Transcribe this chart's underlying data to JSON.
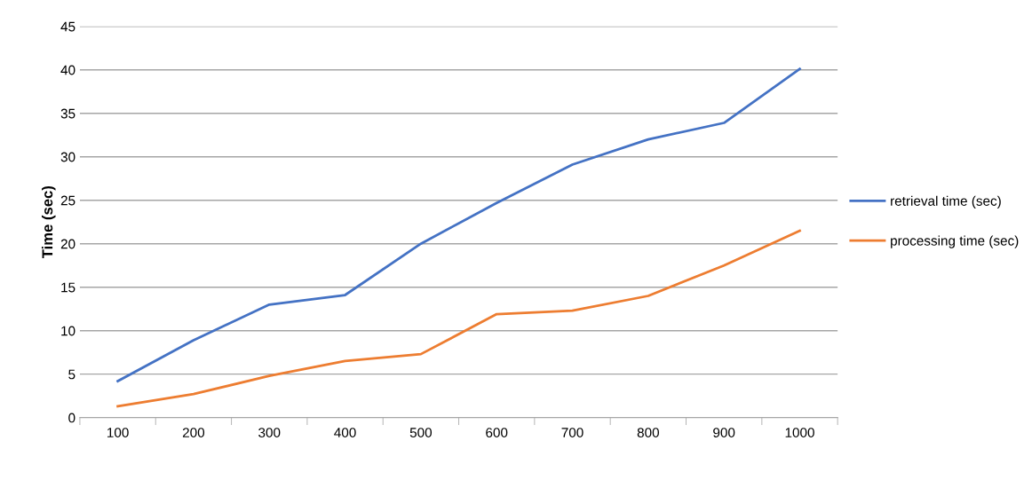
{
  "chart_data": {
    "type": "line",
    "ylabel": "Time (sec)",
    "categories": [
      "100",
      "200",
      "300",
      "400",
      "500",
      "600",
      "700",
      "800",
      "900",
      "1000"
    ],
    "series": [
      {
        "name": "retrieval time (sec)",
        "color": "#4472c4",
        "values": [
          4.2,
          8.9,
          13.0,
          14.1,
          20.0,
          24.7,
          29.1,
          32.0,
          33.9,
          40.1
        ]
      },
      {
        "name": "processing time (sec)",
        "color": "#ed7d31",
        "values": [
          1.3,
          2.7,
          4.8,
          6.5,
          7.3,
          11.9,
          12.3,
          14.0,
          17.5,
          21.5
        ]
      }
    ],
    "ylim": [
      0,
      45
    ],
    "yticks": [
      0,
      5,
      10,
      15,
      20,
      25,
      30,
      35,
      40,
      45
    ],
    "grid": "y",
    "legend": "right",
    "marker": "none",
    "line_style": "solid"
  }
}
